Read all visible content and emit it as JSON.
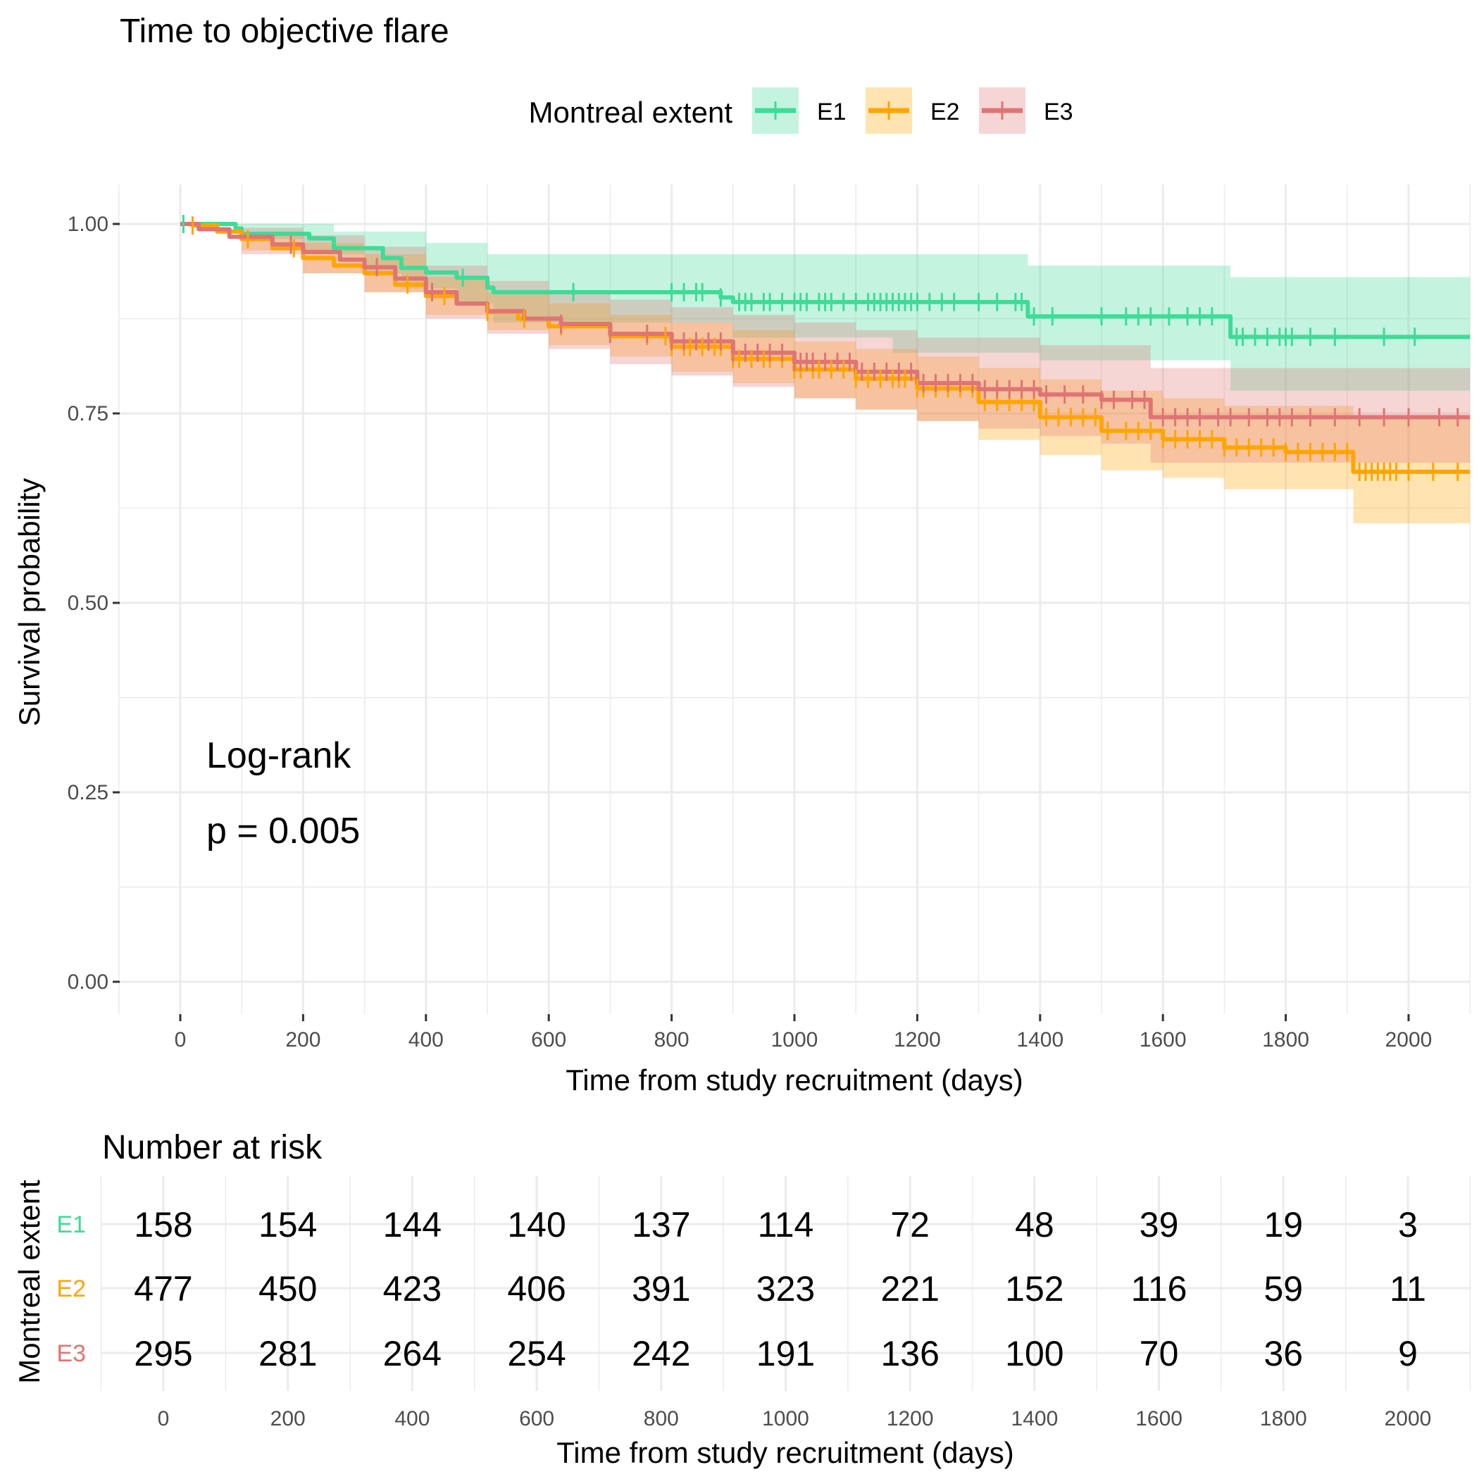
{
  "chart_data": {
    "type": "line",
    "subtype": "kaplan-meier",
    "title": "Time to objective flare",
    "xlabel": "Time from study recruitment (days)",
    "ylabel": "Survival probability",
    "xlim": [
      -100,
      2100
    ],
    "ylim": [
      -0.05,
      1.05
    ],
    "xticks": [
      0,
      200,
      400,
      600,
      800,
      1000,
      1200,
      1400,
      1600,
      1800,
      2000
    ],
    "yticks": [
      0.0,
      0.25,
      0.5,
      0.75,
      1.0
    ],
    "ytick_labels": [
      "0.00",
      "0.25",
      "0.50",
      "0.75",
      "1.00"
    ],
    "grid": true,
    "legend": {
      "title": "Montreal extent",
      "position": "top"
    },
    "annotation": {
      "line1": "Log-rank",
      "line2": "p = 0.005"
    },
    "series": [
      {
        "name": "E1",
        "color": "#3DDC97",
        "fill": "#C4F2DF",
        "steps": [
          [
            0,
            1.0
          ],
          [
            90,
            0.994
          ],
          [
            100,
            0.987
          ],
          [
            210,
            0.981
          ],
          [
            250,
            0.968
          ],
          [
            330,
            0.955
          ],
          [
            360,
            0.942
          ],
          [
            400,
            0.936
          ],
          [
            450,
            0.929
          ],
          [
            500,
            0.916
          ],
          [
            510,
            0.91
          ],
          [
            880,
            0.903
          ],
          [
            900,
            0.897
          ],
          [
            1380,
            0.878
          ],
          [
            1710,
            0.851
          ],
          [
            2100,
            0.851
          ]
        ],
        "lower": [
          [
            0,
            1.0
          ],
          [
            90,
            0.98
          ],
          [
            200,
            0.96
          ],
          [
            300,
            0.935
          ],
          [
            360,
            0.915
          ],
          [
            450,
            0.895
          ],
          [
            510,
            0.87
          ],
          [
            900,
            0.85
          ],
          [
            1160,
            0.83
          ],
          [
            1400,
            0.82
          ],
          [
            1710,
            0.78
          ],
          [
            2100,
            0.78
          ]
        ],
        "upper": [
          [
            0,
            1.0
          ],
          [
            100,
            1.0
          ],
          [
            250,
            0.99
          ],
          [
            400,
            0.975
          ],
          [
            500,
            0.96
          ],
          [
            1380,
            0.945
          ],
          [
            1710,
            0.93
          ],
          [
            2100,
            0.93
          ]
        ],
        "censor_times": [
          5,
          460,
          640,
          800,
          820,
          840,
          850,
          880,
          910,
          920,
          930,
          950,
          960,
          980,
          1000,
          1010,
          1020,
          1040,
          1050,
          1060,
          1080,
          1100,
          1120,
          1130,
          1140,
          1150,
          1160,
          1170,
          1180,
          1190,
          1200,
          1220,
          1240,
          1260,
          1300,
          1330,
          1360,
          1370,
          1390,
          1420,
          1500,
          1540,
          1560,
          1580,
          1610,
          1640,
          1660,
          1680,
          1720,
          1730,
          1750,
          1770,
          1790,
          1800,
          1810,
          1840,
          1880,
          1960,
          2010
        ]
      },
      {
        "name": "E2",
        "color": "#FFA500",
        "fill": "#FDE3B0",
        "steps": [
          [
            0,
            1.0
          ],
          [
            20,
            0.998
          ],
          [
            60,
            0.99
          ],
          [
            100,
            0.98
          ],
          [
            150,
            0.968
          ],
          [
            200,
            0.955
          ],
          [
            250,
            0.945
          ],
          [
            300,
            0.935
          ],
          [
            350,
            0.92
          ],
          [
            400,
            0.905
          ],
          [
            450,
            0.895
          ],
          [
            500,
            0.884
          ],
          [
            550,
            0.875
          ],
          [
            600,
            0.865
          ],
          [
            700,
            0.852
          ],
          [
            800,
            0.838
          ],
          [
            900,
            0.822
          ],
          [
            1000,
            0.808
          ],
          [
            1100,
            0.796
          ],
          [
            1200,
            0.783
          ],
          [
            1300,
            0.765
          ],
          [
            1400,
            0.745
          ],
          [
            1500,
            0.727
          ],
          [
            1600,
            0.716
          ],
          [
            1700,
            0.705
          ],
          [
            1800,
            0.699
          ],
          [
            1900,
            0.699
          ],
          [
            1910,
            0.673
          ],
          [
            2100,
            0.673
          ]
        ],
        "lower": [
          [
            0,
            1.0
          ],
          [
            100,
            0.965
          ],
          [
            200,
            0.935
          ],
          [
            300,
            0.91
          ],
          [
            400,
            0.88
          ],
          [
            500,
            0.86
          ],
          [
            600,
            0.84
          ],
          [
            700,
            0.825
          ],
          [
            800,
            0.805
          ],
          [
            900,
            0.79
          ],
          [
            1000,
            0.77
          ],
          [
            1100,
            0.755
          ],
          [
            1200,
            0.74
          ],
          [
            1300,
            0.715
          ],
          [
            1400,
            0.695
          ],
          [
            1500,
            0.675
          ],
          [
            1600,
            0.665
          ],
          [
            1700,
            0.65
          ],
          [
            1910,
            0.605
          ],
          [
            2100,
            0.605
          ]
        ],
        "upper": [
          [
            0,
            1.0
          ],
          [
            100,
            0.99
          ],
          [
            200,
            0.975
          ],
          [
            300,
            0.96
          ],
          [
            400,
            0.93
          ],
          [
            500,
            0.91
          ],
          [
            600,
            0.895
          ],
          [
            700,
            0.88
          ],
          [
            800,
            0.87
          ],
          [
            900,
            0.86
          ],
          [
            1000,
            0.845
          ],
          [
            1100,
            0.835
          ],
          [
            1200,
            0.825
          ],
          [
            1300,
            0.81
          ],
          [
            1400,
            0.795
          ],
          [
            1500,
            0.78
          ],
          [
            1600,
            0.77
          ],
          [
            1700,
            0.76
          ],
          [
            1910,
            0.745
          ],
          [
            2100,
            0.745
          ]
        ],
        "censor_times": [
          20,
          110,
          185,
          370,
          430,
          500,
          560,
          620,
          760,
          790,
          800,
          820,
          830,
          850,
          870,
          880,
          900,
          910,
          930,
          950,
          960,
          980,
          1000,
          1010,
          1030,
          1040,
          1060,
          1080,
          1100,
          1120,
          1140,
          1160,
          1170,
          1180,
          1200,
          1210,
          1230,
          1250,
          1270,
          1290,
          1310,
          1330,
          1350,
          1370,
          1390,
          1410,
          1430,
          1450,
          1470,
          1490,
          1510,
          1540,
          1560,
          1580,
          1600,
          1620,
          1640,
          1660,
          1680,
          1700,
          1720,
          1740,
          1760,
          1780,
          1800,
          1820,
          1840,
          1860,
          1880,
          1900,
          1920,
          1930,
          1940,
          1950,
          1960,
          1970,
          1980,
          2000,
          2040,
          2080
        ]
      },
      {
        "name": "E3",
        "color": "#E07474",
        "fill": "#F4D3D6",
        "steps": [
          [
            0,
            1.0
          ],
          [
            30,
            0.993
          ],
          [
            80,
            0.983
          ],
          [
            150,
            0.973
          ],
          [
            200,
            0.963
          ],
          [
            260,
            0.953
          ],
          [
            300,
            0.943
          ],
          [
            350,
            0.928
          ],
          [
            400,
            0.91
          ],
          [
            450,
            0.895
          ],
          [
            500,
            0.885
          ],
          [
            560,
            0.875
          ],
          [
            620,
            0.868
          ],
          [
            700,
            0.855
          ],
          [
            800,
            0.845
          ],
          [
            900,
            0.83
          ],
          [
            1000,
            0.818
          ],
          [
            1100,
            0.805
          ],
          [
            1200,
            0.79
          ],
          [
            1300,
            0.782
          ],
          [
            1400,
            0.775
          ],
          [
            1500,
            0.768
          ],
          [
            1580,
            0.745
          ],
          [
            2100,
            0.745
          ]
        ],
        "lower": [
          [
            0,
            1.0
          ],
          [
            100,
            0.96
          ],
          [
            200,
            0.935
          ],
          [
            300,
            0.91
          ],
          [
            400,
            0.875
          ],
          [
            500,
            0.855
          ],
          [
            600,
            0.835
          ],
          [
            700,
            0.815
          ],
          [
            800,
            0.8
          ],
          [
            900,
            0.785
          ],
          [
            1000,
            0.77
          ],
          [
            1100,
            0.755
          ],
          [
            1200,
            0.74
          ],
          [
            1300,
            0.73
          ],
          [
            1400,
            0.72
          ],
          [
            1500,
            0.71
          ],
          [
            1580,
            0.685
          ],
          [
            2100,
            0.685
          ]
        ],
        "upper": [
          [
            0,
            1.0
          ],
          [
            100,
            0.995
          ],
          [
            200,
            0.985
          ],
          [
            300,
            0.97
          ],
          [
            400,
            0.945
          ],
          [
            500,
            0.925
          ],
          [
            600,
            0.91
          ],
          [
            700,
            0.9
          ],
          [
            800,
            0.89
          ],
          [
            900,
            0.88
          ],
          [
            1000,
            0.87
          ],
          [
            1100,
            0.86
          ],
          [
            1200,
            0.85
          ],
          [
            1400,
            0.84
          ],
          [
            1580,
            0.81
          ],
          [
            2100,
            0.81
          ]
        ],
        "censor_times": [
          180,
          320,
          410,
          620,
          700,
          760,
          800,
          820,
          840,
          860,
          880,
          900,
          920,
          940,
          960,
          980,
          1000,
          1010,
          1020,
          1030,
          1050,
          1070,
          1090,
          1110,
          1130,
          1150,
          1170,
          1190,
          1210,
          1230,
          1250,
          1270,
          1290,
          1310,
          1330,
          1350,
          1370,
          1390,
          1410,
          1440,
          1470,
          1500,
          1520,
          1550,
          1570,
          1600,
          1620,
          1640,
          1660,
          1690,
          1710,
          1740,
          1770,
          1790,
          1810,
          1840,
          1880,
          1920,
          1960,
          2000,
          2050,
          2080
        ]
      }
    ],
    "risk_table": {
      "title": "Number at risk",
      "ylabel": "Montreal extent",
      "xlabel": "Time from study recruitment (days)",
      "times": [
        0,
        200,
        400,
        600,
        800,
        1000,
        1200,
        1400,
        1600,
        1800,
        2000
      ],
      "rows": [
        {
          "name": "E1",
          "color": "#3DDC97",
          "values": [
            158,
            154,
            144,
            140,
            137,
            114,
            72,
            48,
            39,
            19,
            3
          ]
        },
        {
          "name": "E2",
          "color": "#FFA500",
          "values": [
            477,
            450,
            423,
            406,
            391,
            323,
            221,
            152,
            116,
            59,
            11
          ]
        },
        {
          "name": "E3",
          "color": "#E07474",
          "values": [
            295,
            281,
            264,
            254,
            242,
            191,
            136,
            100,
            70,
            36,
            9
          ]
        }
      ]
    }
  }
}
